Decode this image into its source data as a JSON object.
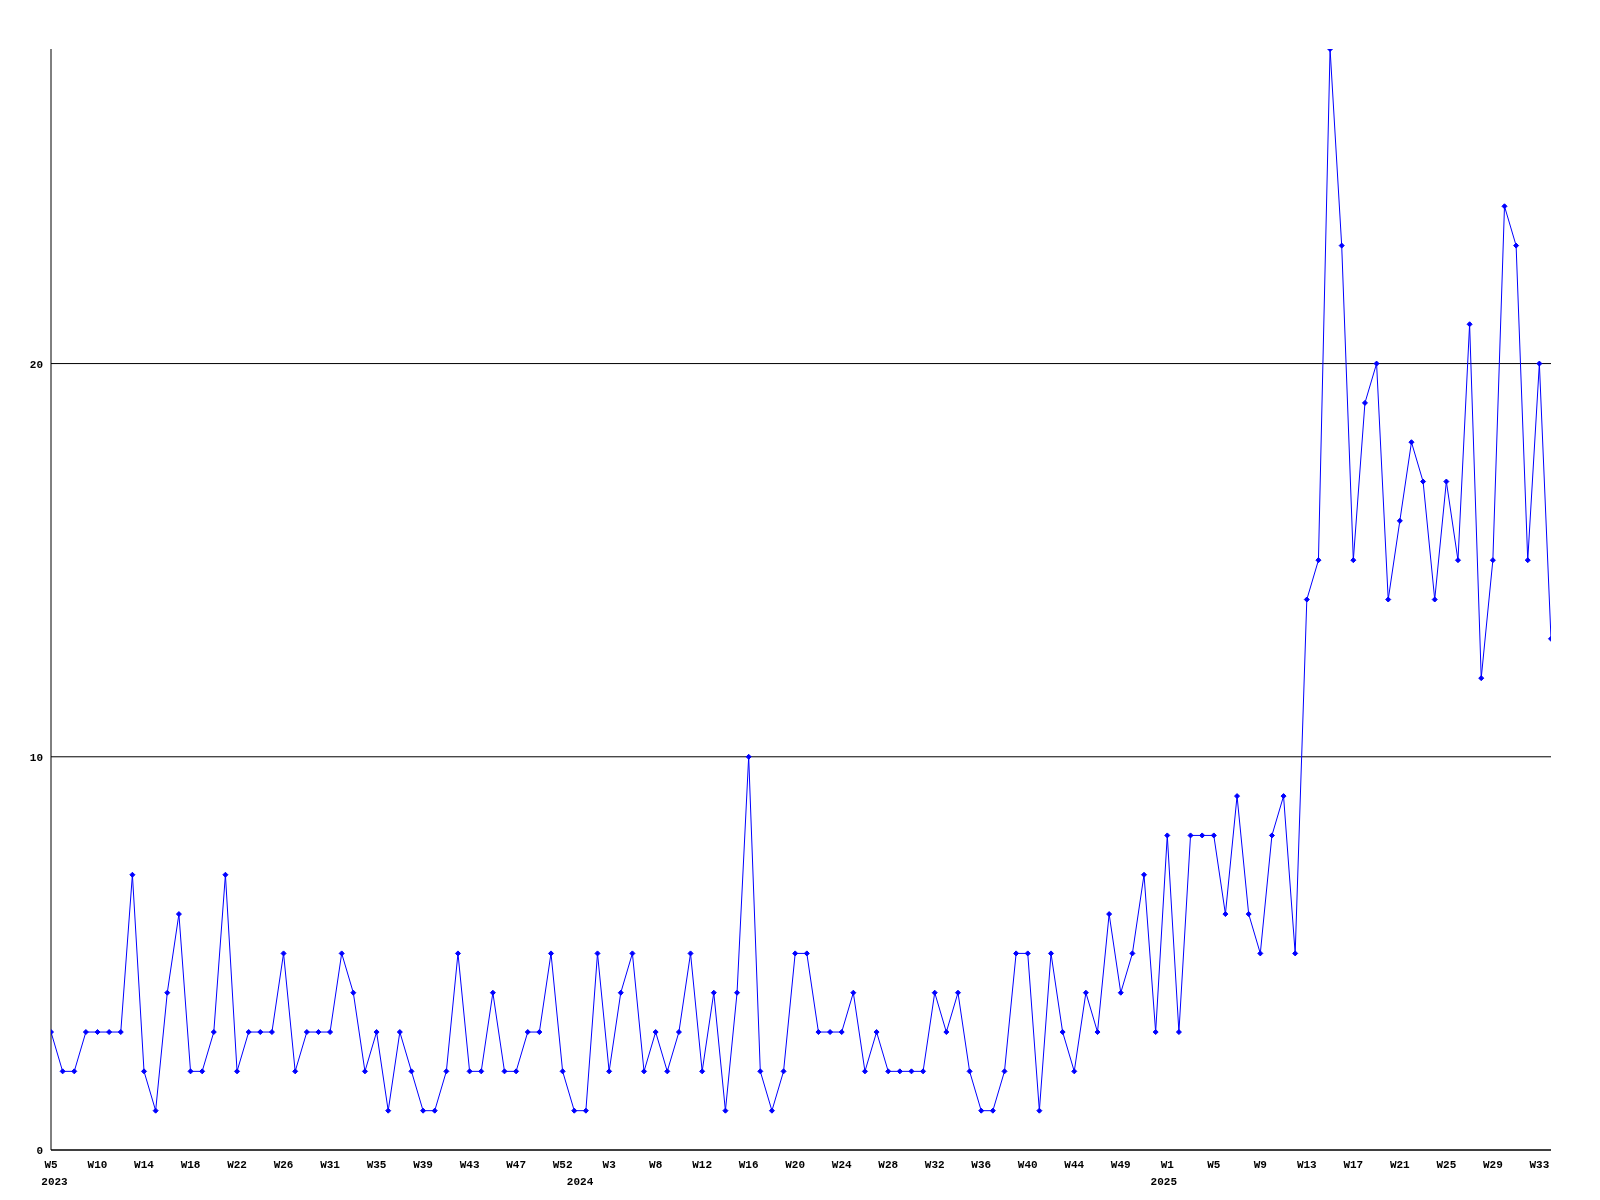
{
  "chart_data": {
    "type": "line",
    "categories": [
      "W5",
      null,
      null,
      null,
      "W10",
      null,
      null,
      null,
      "W14",
      null,
      null,
      null,
      "W18",
      null,
      null,
      null,
      "W22",
      null,
      null,
      null,
      "W26",
      null,
      null,
      null,
      "W31",
      null,
      null,
      null,
      "W35",
      null,
      null,
      null,
      "W39",
      null,
      null,
      null,
      "W43",
      null,
      null,
      null,
      "W47",
      null,
      null,
      null,
      "W52",
      null,
      null,
      null,
      "W3",
      null,
      null,
      null,
      "W8",
      null,
      null,
      null,
      "W12",
      null,
      null,
      null,
      "W16",
      null,
      null,
      null,
      "W20",
      null,
      null,
      null,
      "W24",
      null,
      null,
      null,
      "W28",
      null,
      null,
      null,
      "W32",
      null,
      null,
      null,
      "W36",
      null,
      null,
      null,
      "W40",
      null,
      null,
      null,
      "W44",
      null,
      null,
      null,
      "W49",
      null,
      null,
      null,
      "W1",
      null,
      null,
      null,
      "W5",
      null,
      null,
      null,
      "W9",
      null,
      null,
      null,
      "W13",
      null,
      null,
      null,
      "W17",
      null,
      null,
      null,
      "W21",
      null,
      null,
      null,
      "W25",
      null,
      null,
      null,
      "W29",
      null,
      null,
      null,
      "W33",
      null
    ],
    "series": [
      {
        "color": "#0000ff",
        "values": [
          3,
          2,
          2,
          3,
          3,
          3,
          3,
          7,
          2,
          1,
          4,
          6,
          2,
          2,
          3,
          7,
          2,
          3,
          3,
          3,
          5,
          2,
          3,
          3,
          3,
          5,
          4,
          2,
          3,
          1,
          3,
          2,
          1,
          1,
          2,
          5,
          2,
          2,
          4,
          2,
          2,
          3,
          3,
          5,
          2,
          1,
          1,
          5,
          2,
          4,
          5,
          2,
          3,
          2,
          3,
          5,
          2,
          4,
          1,
          4,
          10,
          2,
          1,
          2,
          5,
          5,
          3,
          3,
          3,
          4,
          2,
          3,
          2,
          2,
          2,
          2,
          4,
          3,
          4,
          2,
          1,
          1,
          2,
          5,
          5,
          1,
          5,
          3,
          2,
          4,
          3,
          6,
          4,
          5,
          7,
          3,
          8,
          3,
          8,
          8,
          8,
          6,
          9,
          6,
          5,
          8,
          9,
          5,
          14,
          15,
          28,
          23,
          15,
          19,
          20,
          14,
          16,
          18,
          17,
          14,
          17,
          15,
          21,
          12,
          15,
          24,
          23,
          15,
          20,
          13
        ]
      }
    ],
    "ylim": [
      0,
      28
    ],
    "yticks": [
      0,
      10,
      20
    ],
    "grid": "y",
    "marker": "diamond",
    "line_style": "solid",
    "annotations": [
      "2023",
      "2024",
      "2025"
    ]
  }
}
